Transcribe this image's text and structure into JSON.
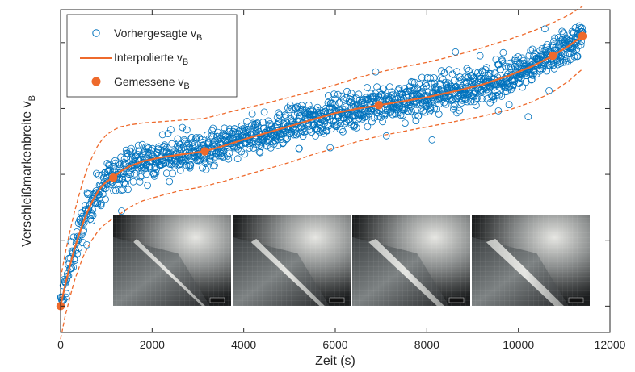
{
  "chart_data": {
    "type": "scatter",
    "xlabel": "Zeit (s)",
    "ylabel": "Verschleißmarkenbreite v",
    "ylabel_subscript": "B",
    "xlim": [
      0,
      12000
    ],
    "ylim": [
      -0.4,
      4.5
    ],
    "xticks": [
      "0",
      "2000",
      "4000",
      "6000",
      "8000",
      "10000",
      "12000"
    ],
    "yticks_shown": false,
    "grid": false,
    "legend_position": "top-left",
    "legend": [
      {
        "text": "Vorhergesagte v",
        "sub": "B",
        "marker": "open-circle",
        "color": "#0072BD"
      },
      {
        "text": "Interpolierte v",
        "sub": "B",
        "marker": "line",
        "color": "#EE6A2C"
      },
      {
        "text": "Gemessene v",
        "sub": "B",
        "marker": "filled-circle",
        "color": "#EE6A2C"
      }
    ],
    "series": [
      {
        "name": "Gemessene v_B",
        "style": "filled-marker",
        "color": "#EE6A2C",
        "x": [
          0,
          1150,
          3150,
          6950,
          10750,
          11400
        ],
        "y": [
          0.0,
          1.95,
          2.35,
          3.05,
          3.8,
          4.1
        ]
      },
      {
        "name": "Interpolierte v_B",
        "style": "line",
        "color": "#EE6A2C",
        "x": [
          0,
          100,
          200,
          300,
          400,
          500,
          600,
          700,
          800,
          900,
          1000,
          1150,
          1300,
          1500,
          1800,
          2200,
          2600,
          3150,
          3600,
          4000,
          4500,
          5000,
          5500,
          6000,
          6500,
          6950,
          7400,
          8000,
          8600,
          9200,
          9800,
          10300,
          10750,
          11100,
          11400
        ],
        "y": [
          0.0,
          0.32,
          0.6,
          0.86,
          1.08,
          1.28,
          1.45,
          1.6,
          1.72,
          1.82,
          1.89,
          1.95,
          2.04,
          2.12,
          2.2,
          2.26,
          2.3,
          2.35,
          2.44,
          2.53,
          2.63,
          2.73,
          2.83,
          2.93,
          3.0,
          3.05,
          3.1,
          3.17,
          3.26,
          3.36,
          3.5,
          3.64,
          3.8,
          3.95,
          4.1
        ]
      },
      {
        "name": "Obere Grenze",
        "style": "dashed-line",
        "color": "#EE6A2C",
        "x": [
          0,
          100,
          200,
          300,
          400,
          500,
          600,
          700,
          800,
          900,
          1000,
          1150,
          1300,
          1500,
          1800,
          2200,
          2600,
          3150,
          3600,
          4000,
          4500,
          5000,
          5500,
          6000,
          6500,
          6950,
          7400,
          8000,
          8600,
          9200,
          9800,
          10300,
          10750,
          11100,
          11400
        ],
        "y": [
          0.42,
          0.8,
          1.12,
          1.42,
          1.68,
          1.92,
          2.12,
          2.28,
          2.42,
          2.52,
          2.6,
          2.67,
          2.72,
          2.75,
          2.78,
          2.8,
          2.82,
          2.85,
          2.93,
          3.0,
          3.08,
          3.17,
          3.26,
          3.36,
          3.47,
          3.55,
          3.62,
          3.7,
          3.8,
          3.92,
          4.05,
          4.17,
          4.3,
          4.42,
          4.55
        ]
      },
      {
        "name": "Untere Grenze",
        "style": "dashed-line",
        "color": "#EE6A2C",
        "x": [
          0,
          100,
          200,
          300,
          400,
          500,
          600,
          700,
          800,
          900,
          1000,
          1150,
          1300,
          1500,
          1800,
          2200,
          2600,
          3150,
          3600,
          4000,
          4500,
          5000,
          5500,
          6000,
          6500,
          6950,
          7400,
          8000,
          8600,
          9200,
          9800,
          10300,
          10750,
          11100,
          11400
        ],
        "y": [
          -0.5,
          -0.15,
          0.12,
          0.38,
          0.58,
          0.76,
          0.9,
          1.02,
          1.12,
          1.2,
          1.26,
          1.33,
          1.4,
          1.5,
          1.6,
          1.68,
          1.75,
          1.82,
          1.9,
          1.98,
          2.08,
          2.18,
          2.3,
          2.4,
          2.5,
          2.58,
          2.64,
          2.72,
          2.8,
          2.88,
          2.98,
          3.1,
          3.25,
          3.42,
          3.6
        ]
      },
      {
        "name": "Vorhergesagte v_B",
        "style": "open-marker",
        "color": "#0072BD",
        "count": 1600,
        "follows": "Interpolierte v_B",
        "spread": 0.13
      }
    ],
    "inset": {
      "type": "image-strip",
      "panels": 4,
      "content": "Mikroskopaufnahmen der Werkzeugschneide mit Verschleißmarke"
    }
  }
}
